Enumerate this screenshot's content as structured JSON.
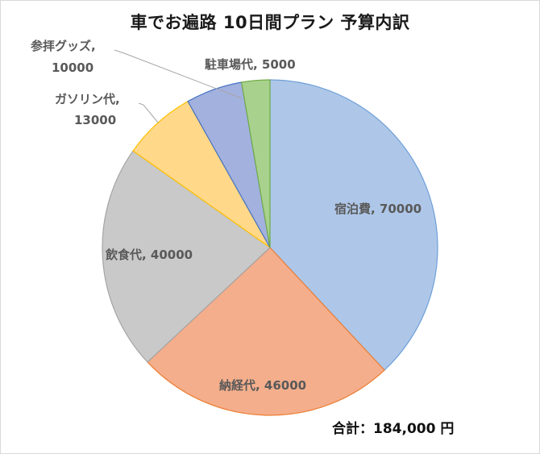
{
  "chart_data": {
    "type": "pie",
    "title": "車でお遍路 10日間プラン 予算内訳",
    "categories": [
      "宿泊費",
      "納経代",
      "飲食代",
      "ガソリン代",
      "参拝グッズ",
      "駐車場代"
    ],
    "values": [
      70000,
      46000,
      40000,
      13000,
      10000,
      5000
    ],
    "colors": [
      "#aec7e8",
      "#f4ae8c",
      "#c9c9c9",
      "#ffd88a",
      "#a3b1df",
      "#a9d18e"
    ],
    "edge_colors": [
      "#6f9fd8",
      "#ed7d31",
      "#a5a5a5",
      "#ffc000",
      "#4472c4",
      "#70ad47"
    ],
    "data_labels": [
      "宿泊費, 70000",
      "納経代, 46000",
      "飲食代, 40000",
      "ガソリン代, 13000",
      "参拝グッズ, 10000",
      "駐車場代, 5000"
    ],
    "start_angle_deg": 0,
    "direction": "clockwise",
    "legend": "none",
    "annotation": "合計：184,000 円"
  },
  "labels": {
    "shukuhaku": "宿泊費, 70000",
    "nokyo": "納経代, 46000",
    "inshoku": "飲食代, 40000",
    "gasoline_1": "ガソリン代,",
    "gasoline_2": "13000",
    "goods_1": "参拝グッズ,",
    "goods_2": "10000",
    "parking": "駐車場代, 5000"
  },
  "total": "合計：184,000 円"
}
